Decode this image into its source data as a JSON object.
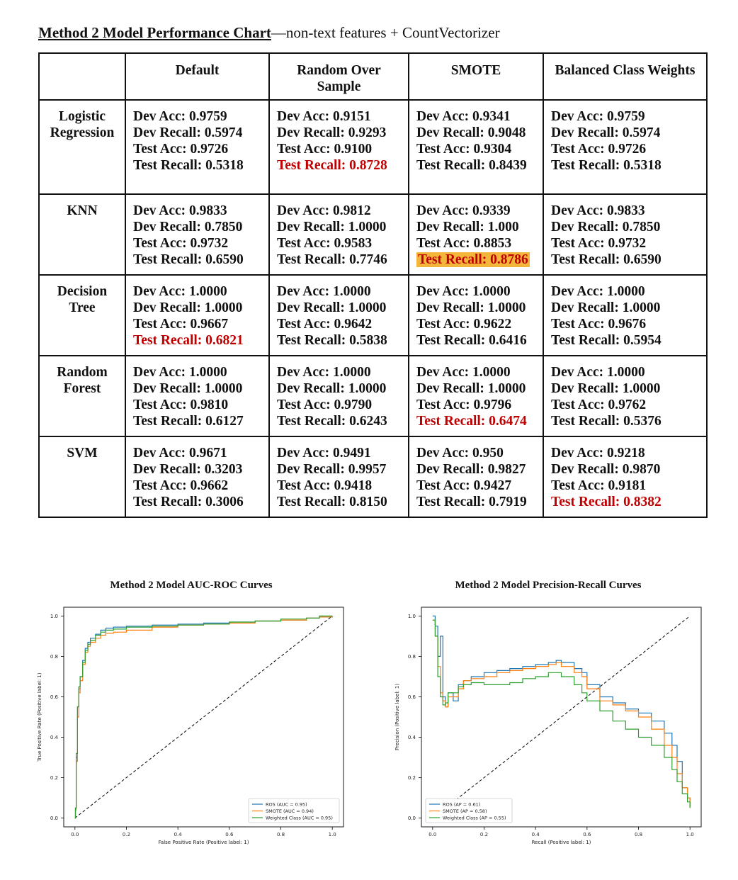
{
  "title": {
    "main": "Method 2 Model Performance Chart",
    "sub": "—non-text features + CountVectorizer"
  },
  "table": {
    "corner": "",
    "columns": [
      "Default",
      "Random Over Sample",
      "SMOTE",
      "Balanced Class Weights"
    ],
    "rows": [
      {
        "model": "Logistic Regression",
        "cells": [
          [
            "Dev Acc: 0.9759",
            "Dev Recall: 0.5974",
            "Test Acc: 0.9726",
            "Test Recall: 0.5318"
          ],
          [
            "Dev Acc: 0.9151",
            "Dev Recall: 0.9293",
            "Test Acc: 0.9100",
            "Test Recall: 0.8728"
          ],
          [
            "Dev Acc: 0.9341",
            "Dev Recall: 0.9048",
            "Test Acc: 0.9304",
            "Test Recall: 0.8439"
          ],
          [
            "Dev Acc: 0.9759",
            "Dev Recall: 0.5974",
            "Test Acc: 0.9726",
            "Test Recall: 0.5318"
          ]
        ]
      },
      {
        "model": "KNN",
        "cells": [
          [
            "Dev Acc: 0.9833",
            "Dev Recall: 0.7850",
            "Test Acc: 0.9732",
            "Test Recall: 0.6590"
          ],
          [
            "Dev Acc: 0.9812",
            "Dev Recall: 1.0000",
            "Test Acc: 0.9583",
            "Test Recall:  0.7746"
          ],
          [
            "Dev Acc: 0.9339",
            "Dev Recall: 1.000",
            "Test Acc: 0.8853",
            "Test Recall: 0.8786"
          ],
          [
            "Dev Acc: 0.9833",
            "Dev Recall: 0.7850",
            "Test Acc: 0.9732",
            "Test Recall: 0.6590"
          ]
        ]
      },
      {
        "model": "Decision Tree",
        "cells": [
          [
            "Dev Acc: 1.0000",
            "Dev Recall: 1.0000",
            "Test Acc: 0.9667",
            "Test Recall: 0.6821"
          ],
          [
            "Dev Acc: 1.0000",
            "Dev Recall: 1.0000",
            "Test Acc: 0.9642",
            "Test Recall: 0.5838"
          ],
          [
            "Dev Acc: 1.0000",
            "Dev Recall: 1.0000",
            "Test Acc: 0.9622",
            "Test Recall: 0.6416"
          ],
          [
            "Dev Acc: 1.0000",
            "Dev Recall: 1.0000",
            "Test Acc: 0.9676",
            "Test Recall: 0.5954"
          ]
        ]
      },
      {
        "model": "Random Forest",
        "cells": [
          [
            "Dev Acc: 1.0000",
            "Dev Recall: 1.0000",
            "Test Acc: 0.9810",
            "Test Recall: 0.6127"
          ],
          [
            "Dev Acc: 1.0000",
            "Dev Recall: 1.0000",
            "Test Acc: 0.9790",
            "Test Recall: 0.6243"
          ],
          [
            "Dev Acc: 1.0000",
            "Dev Recall: 1.0000",
            "Test Acc: 0.9796",
            "Test Recall: 0.6474"
          ],
          [
            "Dev Acc: 1.0000",
            "Dev Recall: 1.0000",
            "Test Acc: 0.9762",
            "Test Recall: 0.5376"
          ]
        ]
      },
      {
        "model": "SVM",
        "cells": [
          [
            "Dev Acc: 0.9671",
            "Dev Recall: 0.3203",
            "Test Acc: 0.9662",
            "Test Recall: 0.3006"
          ],
          [
            "Dev Acc: 0.9491",
            "Dev Recall: 0.9957",
            "Test Acc: 0.9418",
            "Test Recall: 0.8150"
          ],
          [
            "Dev Acc: 0.950",
            "Dev Recall: 0.9827",
            "Test Acc: 0.9427",
            "Test Recall: 0.7919"
          ],
          [
            "Dev Acc: 0.9218",
            "Dev Recall: 0.9870",
            "Test Acc: 0.9181",
            "Test Recall: 0.8382"
          ]
        ]
      }
    ],
    "highlights": {
      "red_text": [
        "0-1",
        "2-0",
        "3-2",
        "4-3"
      ],
      "gold_background": [
        "1-2"
      ]
    },
    "colors": {
      "red": "#c00000",
      "highlight": "#f4b63a"
    }
  },
  "chart_data": [
    {
      "type": "line",
      "title": "Method 2 Model AUC-ROC Curves",
      "xlabel": "False Positive Rate (Positive label: 1)",
      "ylabel": "True Positive Rate (Positive label: 1)",
      "xlim": [
        0,
        1
      ],
      "ylim": [
        0,
        1
      ],
      "xticks": [
        "0.0",
        "0.2",
        "0.4",
        "0.6",
        "0.8",
        "1.0"
      ],
      "yticks": [
        "0.0",
        "0.2",
        "0.4",
        "0.6",
        "0.8",
        "1.0"
      ],
      "legend_position": "lower-right",
      "grid": false,
      "reference_line": [
        [
          0,
          0
        ],
        [
          1,
          1
        ]
      ],
      "series": [
        {
          "name": "ROS (AUC = 0.95)",
          "color": "#1f77b4",
          "x": [
            0,
            0.002,
            0.005,
            0.01,
            0.015,
            0.02,
            0.03,
            0.04,
            0.05,
            0.06,
            0.08,
            0.1,
            0.12,
            0.15,
            0.2,
            0.3,
            0.4,
            0.5,
            0.6,
            0.7,
            0.8,
            0.9,
            0.95,
            1.0
          ],
          "y": [
            0,
            0.05,
            0.3,
            0.55,
            0.64,
            0.7,
            0.78,
            0.84,
            0.87,
            0.89,
            0.91,
            0.93,
            0.94,
            0.945,
            0.95,
            0.955,
            0.96,
            0.965,
            0.97,
            0.975,
            0.98,
            0.99,
            0.995,
            1.0
          ]
        },
        {
          "name": "SMOTE (AUC = 0.94)",
          "color": "#ff7f0e",
          "x": [
            0,
            0.002,
            0.005,
            0.01,
            0.015,
            0.02,
            0.03,
            0.04,
            0.05,
            0.06,
            0.08,
            0.1,
            0.12,
            0.15,
            0.2,
            0.3,
            0.4,
            0.5,
            0.6,
            0.7,
            0.8,
            0.9,
            0.95,
            1.0
          ],
          "y": [
            0,
            0.04,
            0.28,
            0.5,
            0.62,
            0.68,
            0.76,
            0.82,
            0.85,
            0.87,
            0.89,
            0.905,
            0.915,
            0.92,
            0.93,
            0.945,
            0.955,
            0.96,
            0.965,
            0.975,
            0.98,
            0.99,
            0.995,
            1.0
          ]
        },
        {
          "name": "Weighted Class (AUC = 0.95)",
          "color": "#2ca02c",
          "x": [
            0,
            0.002,
            0.005,
            0.01,
            0.015,
            0.02,
            0.03,
            0.04,
            0.05,
            0.06,
            0.08,
            0.1,
            0.12,
            0.15,
            0.2,
            0.3,
            0.4,
            0.5,
            0.6,
            0.7,
            0.8,
            0.9,
            0.95,
            1.0
          ],
          "y": [
            0,
            0.05,
            0.32,
            0.55,
            0.65,
            0.7,
            0.77,
            0.83,
            0.86,
            0.88,
            0.905,
            0.92,
            0.93,
            0.935,
            0.945,
            0.95,
            0.955,
            0.96,
            0.97,
            0.975,
            0.985,
            0.99,
            1.0,
            1.0
          ]
        }
      ]
    },
    {
      "type": "line",
      "title": "Method 2 Model Precision-Recall Curves",
      "xlabel": "Recall (Positive label: 1)",
      "ylabel": "Precision (Positive label: 1)",
      "xlim": [
        0,
        1
      ],
      "ylim": [
        0,
        1
      ],
      "xticks": [
        "0.0",
        "0.2",
        "0.4",
        "0.6",
        "0.8",
        "1.0"
      ],
      "yticks": [
        "0.0",
        "0.2",
        "0.4",
        "0.6",
        "0.8",
        "1.0"
      ],
      "legend_position": "lower-left",
      "grid": false,
      "reference_line": [
        [
          0,
          0
        ],
        [
          1,
          1
        ]
      ],
      "series": [
        {
          "name": "ROS (AP = 0.61)",
          "color": "#1f77b4",
          "x": [
            0.0,
            0.01,
            0.02,
            0.03,
            0.04,
            0.05,
            0.06,
            0.08,
            0.1,
            0.12,
            0.15,
            0.2,
            0.25,
            0.3,
            0.35,
            0.4,
            0.45,
            0.48,
            0.5,
            0.55,
            0.58,
            0.6,
            0.65,
            0.7,
            0.75,
            0.8,
            0.85,
            0.9,
            0.93,
            0.95,
            0.97,
            0.99,
            1.0
          ],
          "y": [
            1.0,
            0.95,
            0.8,
            0.9,
            0.6,
            0.55,
            0.62,
            0.58,
            0.66,
            0.68,
            0.7,
            0.72,
            0.73,
            0.74,
            0.75,
            0.76,
            0.77,
            0.78,
            0.77,
            0.74,
            0.72,
            0.66,
            0.6,
            0.57,
            0.54,
            0.52,
            0.48,
            0.42,
            0.36,
            0.28,
            0.15,
            0.1,
            0.06
          ]
        },
        {
          "name": "SMOTE (AP = 0.58)",
          "color": "#ff7f0e",
          "x": [
            0.0,
            0.01,
            0.02,
            0.03,
            0.04,
            0.05,
            0.06,
            0.08,
            0.1,
            0.12,
            0.15,
            0.2,
            0.25,
            0.3,
            0.35,
            0.4,
            0.45,
            0.48,
            0.5,
            0.55,
            0.58,
            0.6,
            0.65,
            0.7,
            0.75,
            0.8,
            0.85,
            0.9,
            0.93,
            0.95,
            0.97,
            0.99,
            1.0
          ],
          "y": [
            0.98,
            0.9,
            0.75,
            0.62,
            0.58,
            0.55,
            0.6,
            0.6,
            0.64,
            0.68,
            0.69,
            0.7,
            0.72,
            0.73,
            0.74,
            0.75,
            0.76,
            0.77,
            0.75,
            0.72,
            0.7,
            0.64,
            0.58,
            0.56,
            0.53,
            0.5,
            0.44,
            0.36,
            0.3,
            0.22,
            0.15,
            0.1,
            0.05
          ]
        },
        {
          "name": "Weighted Class (AP = 0.55)",
          "color": "#2ca02c",
          "x": [
            0.0,
            0.01,
            0.02,
            0.03,
            0.04,
            0.05,
            0.06,
            0.08,
            0.1,
            0.12,
            0.15,
            0.2,
            0.25,
            0.3,
            0.35,
            0.4,
            0.45,
            0.48,
            0.5,
            0.55,
            0.58,
            0.6,
            0.65,
            0.7,
            0.75,
            0.8,
            0.85,
            0.9,
            0.93,
            0.95,
            0.97,
            0.99,
            1.0
          ],
          "y": [
            0.98,
            0.9,
            0.7,
            0.6,
            0.56,
            0.57,
            0.62,
            0.62,
            0.65,
            0.66,
            0.67,
            0.66,
            0.66,
            0.67,
            0.69,
            0.7,
            0.72,
            0.72,
            0.7,
            0.66,
            0.62,
            0.58,
            0.53,
            0.48,
            0.44,
            0.4,
            0.36,
            0.3,
            0.24,
            0.18,
            0.12,
            0.08,
            0.05
          ]
        }
      ]
    }
  ]
}
